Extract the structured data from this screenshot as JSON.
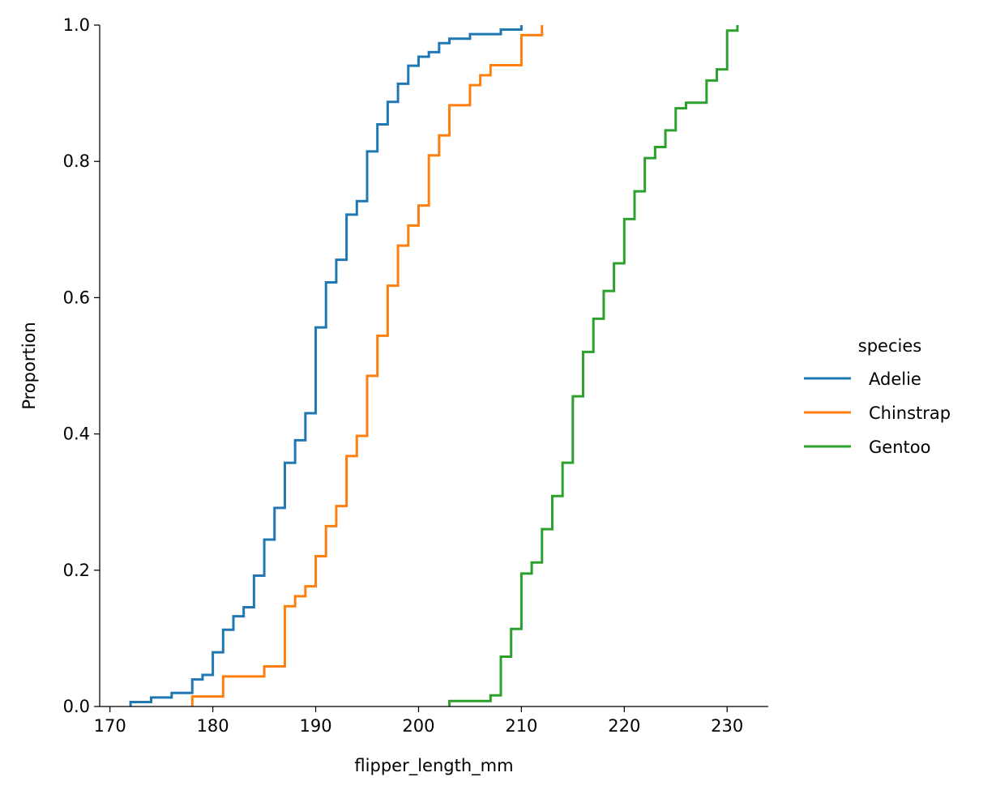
{
  "chart_data": {
    "type": "line",
    "drawstyle": "steps-post",
    "xlabel": "flipper_length_mm",
    "ylabel": "Proportion",
    "xlim": [
      169,
      234
    ],
    "ylim": [
      0,
      1
    ],
    "xticks": [
      170,
      180,
      190,
      200,
      210,
      220,
      230
    ],
    "yticks": [
      0.0,
      0.2,
      0.4,
      0.6,
      0.8,
      1.0
    ],
    "ytick_labels": [
      "0.0",
      "0.2",
      "0.4",
      "0.6",
      "0.8",
      "1.0"
    ],
    "grid": false,
    "legend": {
      "title": "species",
      "placement": "right"
    },
    "series": [
      {
        "name": "Adelie",
        "color": "#1f77b4",
        "points": [
          [
            172,
            0.0066
          ],
          [
            174,
            0.0132
          ],
          [
            176,
            0.0199
          ],
          [
            178,
            0.0397
          ],
          [
            179,
            0.0464
          ],
          [
            180,
            0.0795
          ],
          [
            181,
            0.1126
          ],
          [
            182,
            0.1325
          ],
          [
            183,
            0.1457
          ],
          [
            184,
            0.1921
          ],
          [
            185,
            0.245
          ],
          [
            186,
            0.2914
          ],
          [
            187,
            0.3576
          ],
          [
            188,
            0.3907
          ],
          [
            189,
            0.4305
          ],
          [
            190,
            0.5563
          ],
          [
            191,
            0.6225
          ],
          [
            192,
            0.6556
          ],
          [
            193,
            0.7219
          ],
          [
            194,
            0.7417
          ],
          [
            195,
            0.8146
          ],
          [
            196,
            0.8543
          ],
          [
            197,
            0.8874
          ],
          [
            198,
            0.9139
          ],
          [
            199,
            0.9404
          ],
          [
            200,
            0.9536
          ],
          [
            201,
            0.9603
          ],
          [
            202,
            0.9735
          ],
          [
            203,
            0.9801
          ],
          [
            205,
            0.9868
          ],
          [
            208,
            0.9934
          ],
          [
            210,
            1.0
          ]
        ]
      },
      {
        "name": "Chinstrap",
        "color": "#ff7f0e",
        "points": [
          [
            178,
            0.0147
          ],
          [
            181,
            0.0441
          ],
          [
            185,
            0.0588
          ],
          [
            187,
            0.1471
          ],
          [
            188,
            0.1618
          ],
          [
            189,
            0.1765
          ],
          [
            190,
            0.2206
          ],
          [
            191,
            0.2647
          ],
          [
            192,
            0.2941
          ],
          [
            193,
            0.3676
          ],
          [
            194,
            0.3971
          ],
          [
            195,
            0.4853
          ],
          [
            196,
            0.5441
          ],
          [
            197,
            0.6176
          ],
          [
            198,
            0.6765
          ],
          [
            199,
            0.7059
          ],
          [
            200,
            0.7353
          ],
          [
            201,
            0.8088
          ],
          [
            202,
            0.8382
          ],
          [
            203,
            0.8824
          ],
          [
            205,
            0.9118
          ],
          [
            206,
            0.9265
          ],
          [
            207,
            0.9412
          ],
          [
            210,
            0.9853
          ],
          [
            212,
            1.0
          ]
        ]
      },
      {
        "name": "Gentoo",
        "color": "#2ca02c",
        "points": [
          [
            203,
            0.0081
          ],
          [
            207,
            0.0163
          ],
          [
            208,
            0.0732
          ],
          [
            209,
            0.1138
          ],
          [
            210,
            0.1951
          ],
          [
            211,
            0.2114
          ],
          [
            212,
            0.2602
          ],
          [
            213,
            0.3089
          ],
          [
            214,
            0.3577
          ],
          [
            215,
            0.4553
          ],
          [
            216,
            0.5203
          ],
          [
            217,
            0.5691
          ],
          [
            218,
            0.6098
          ],
          [
            219,
            0.6504
          ],
          [
            220,
            0.7154
          ],
          [
            221,
            0.7561
          ],
          [
            222,
            0.8049
          ],
          [
            223,
            0.8211
          ],
          [
            224,
            0.8455
          ],
          [
            225,
            0.878
          ],
          [
            226,
            0.8862
          ],
          [
            228,
            0.9187
          ],
          [
            229,
            0.935
          ],
          [
            230,
            0.9919
          ],
          [
            231,
            1.0
          ]
        ]
      }
    ]
  }
}
